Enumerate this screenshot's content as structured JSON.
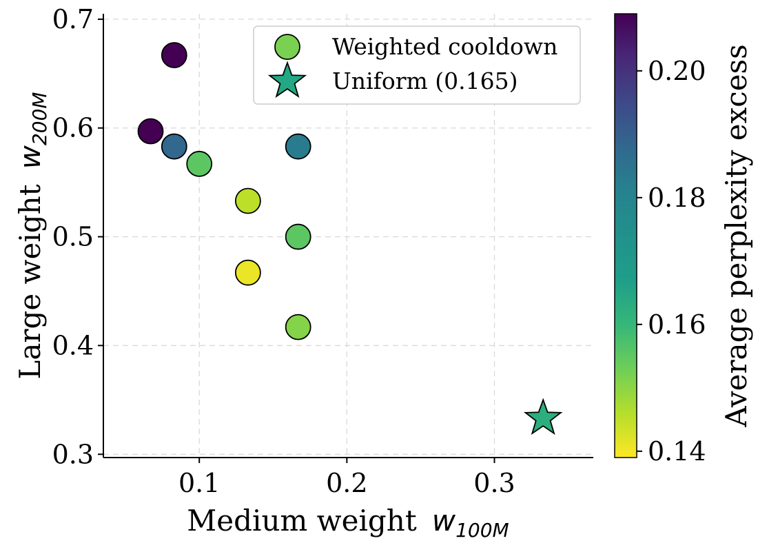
{
  "chart_data": {
    "type": "scatter",
    "xlabel": {
      "prefix": "Medium weight",
      "symbol": "w",
      "subscript": "100M"
    },
    "ylabel": {
      "prefix": "Large weight",
      "symbol": "w",
      "subscript": "200M"
    },
    "xlim": [
      0.035,
      0.367
    ],
    "ylim": [
      0.297,
      0.705
    ],
    "xticks": [
      0.1,
      0.2,
      0.3
    ],
    "xtick_labels": [
      "0.1",
      "0.2",
      "0.3"
    ],
    "yticks": [
      0.3,
      0.4,
      0.5,
      0.6,
      0.7
    ],
    "ytick_labels": [
      "0.3",
      "0.4",
      "0.5",
      "0.6",
      "0.7"
    ],
    "grid": true,
    "legend_position": "top-right",
    "series": [
      {
        "name": "Weighted cooldown",
        "marker": "circle",
        "legend_color": "#7ad151",
        "points": [
          {
            "x": 0.083,
            "y": 0.667,
            "c": 0.209
          },
          {
            "x": 0.067,
            "y": 0.597,
            "c": 0.209
          },
          {
            "x": 0.083,
            "y": 0.583,
            "c": 0.186
          },
          {
            "x": 0.1,
            "y": 0.567,
            "c": 0.157
          },
          {
            "x": 0.167,
            "y": 0.583,
            "c": 0.18
          },
          {
            "x": 0.133,
            "y": 0.533,
            "c": 0.146
          },
          {
            "x": 0.167,
            "y": 0.5,
            "c": 0.157
          },
          {
            "x": 0.133,
            "y": 0.467,
            "c": 0.141
          },
          {
            "x": 0.167,
            "y": 0.417,
            "c": 0.152
          }
        ]
      },
      {
        "name": "Uniform (0.165)",
        "marker": "star",
        "legend_color": "#22a884",
        "points": [
          {
            "x": 0.333,
            "y": 0.333,
            "c": 0.165
          }
        ]
      }
    ],
    "colorbar": {
      "label": "Average perplexity excess",
      "colormap": "viridis",
      "range": [
        0.139,
        0.209
      ],
      "ticks": [
        0.14,
        0.16,
        0.18,
        0.2
      ],
      "tick_labels": [
        "0.14",
        "0.16",
        "0.18",
        "0.20"
      ]
    }
  }
}
